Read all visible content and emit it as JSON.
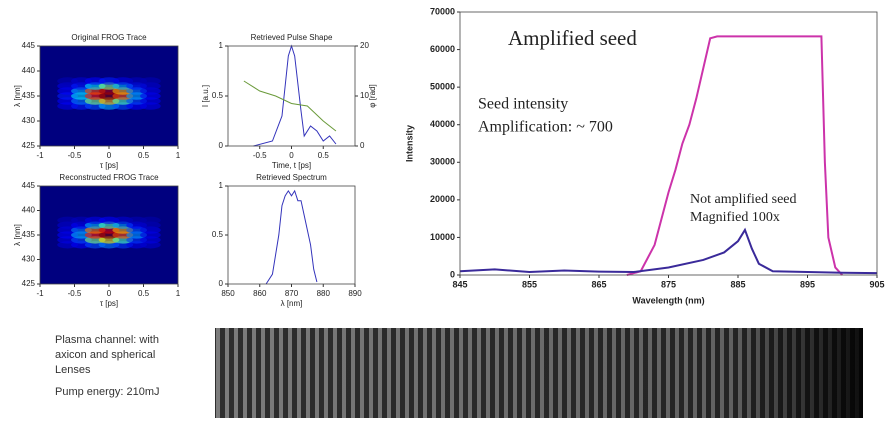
{
  "chart_data": [
    {
      "type": "heatmap",
      "title": "Original FROG Trace",
      "x_label": "τ [ps]",
      "y_label": "λ [nm]",
      "xlim": [
        -1,
        1
      ],
      "xticks": [
        -1,
        -0.5,
        0,
        0.5,
        1
      ],
      "ylim": [
        425,
        445
      ],
      "yticks": [
        425,
        430,
        435,
        440,
        445
      ],
      "background": "#00007f",
      "colormap": "jet",
      "x": [
        -0.6,
        -0.4,
        -0.2,
        0,
        0.2,
        0.4,
        0.6
      ],
      "y": [
        433,
        434,
        435,
        436,
        437,
        438
      ],
      "z": [
        [
          0.1,
          0.15,
          0.2,
          0.3,
          0.2,
          0.12,
          0.1
        ],
        [
          0.12,
          0.25,
          0.5,
          0.7,
          0.45,
          0.2,
          0.1
        ],
        [
          0.15,
          0.35,
          0.85,
          1,
          0.8,
          0.3,
          0.12
        ],
        [
          0.12,
          0.3,
          0.8,
          0.95,
          0.7,
          0.25,
          0.1
        ],
        [
          0.1,
          0.15,
          0.35,
          0.5,
          0.3,
          0.15,
          0.08
        ],
        [
          0.05,
          0.08,
          0.12,
          0.15,
          0.1,
          0.06,
          0.05
        ]
      ]
    },
    {
      "type": "line",
      "title": "Retrieved Pulse Shape",
      "x_label": "Time, t [ps]",
      "y_label": "I [a.u.]",
      "y2_label": "φ [rad]",
      "xlim": [
        -1,
        1
      ],
      "xticks": [
        -0.5,
        0,
        0.5
      ],
      "ylim": [
        0,
        1
      ],
      "yticks": [
        0,
        0.5,
        1
      ],
      "y2lim": [
        0,
        20
      ],
      "y2ticks": [
        0,
        10,
        20
      ],
      "series": [
        {
          "color": "#3333bb",
          "x": [
            -0.6,
            -0.3,
            -0.15,
            -0.05,
            0,
            0.05,
            0.15,
            0.2,
            0.3,
            0.4,
            0.5,
            0.6,
            0.7
          ],
          "values": [
            0,
            0.05,
            0.3,
            0.9,
            1,
            0.9,
            0.35,
            0.1,
            0.2,
            0.15,
            0.05,
            0.1,
            0.02
          ]
        },
        {
          "color": "#6a9a3a",
          "axis": "y2",
          "x": [
            -0.75,
            -0.5,
            -0.25,
            0,
            0.25,
            0.5,
            0.7
          ],
          "values": [
            13,
            11,
            10,
            8.5,
            8,
            5,
            3
          ]
        }
      ]
    },
    {
      "type": "heatmap",
      "title": "Reconstructed FROG Trace",
      "x_label": "τ [ps]",
      "y_label": "λ [nm]",
      "xlim": [
        -1,
        1
      ],
      "xticks": [
        -1,
        -0.5,
        0,
        0.5,
        1
      ],
      "ylim": [
        425,
        445
      ],
      "yticks": [
        425,
        430,
        435,
        440,
        445
      ],
      "background": "#00007f",
      "colormap": "jet",
      "x": [
        -0.6,
        -0.4,
        -0.2,
        0,
        0.2,
        0.4,
        0.6
      ],
      "y": [
        433,
        434,
        435,
        436,
        437,
        438
      ],
      "z": [
        [
          0.08,
          0.12,
          0.2,
          0.25,
          0.18,
          0.1,
          0.08
        ],
        [
          0.1,
          0.2,
          0.5,
          0.65,
          0.45,
          0.18,
          0.1
        ],
        [
          0.12,
          0.3,
          0.85,
          1,
          0.8,
          0.28,
          0.1
        ],
        [
          0.1,
          0.25,
          0.75,
          0.9,
          0.7,
          0.22,
          0.1
        ],
        [
          0.08,
          0.12,
          0.3,
          0.45,
          0.28,
          0.12,
          0.06
        ],
        [
          0.05,
          0.06,
          0.1,
          0.12,
          0.08,
          0.05,
          0.04
        ]
      ]
    },
    {
      "type": "line",
      "title": "Retrieved Spectrum",
      "x_label": "λ [nm]",
      "xlim": [
        850,
        890
      ],
      "xticks": [
        850,
        860,
        870,
        880,
        890
      ],
      "ylim": [
        0,
        1
      ],
      "yticks": [
        0,
        0.5,
        1
      ],
      "series": [
        {
          "color": "#3333bb",
          "x": [
            862,
            864,
            866,
            867,
            868,
            869,
            870,
            871,
            872,
            873,
            874,
            876,
            877,
            878
          ],
          "values": [
            0,
            0.1,
            0.5,
            0.8,
            0.9,
            0.95,
            0.9,
            0.95,
            0.85,
            0.85,
            0.7,
            0.4,
            0.15,
            0.02
          ]
        }
      ]
    },
    {
      "type": "line",
      "x_label": "Wavelength (nm)",
      "y_label": "Intensity",
      "xlim": [
        845,
        905
      ],
      "xticks": [
        845,
        855,
        865,
        875,
        885,
        895,
        905
      ],
      "ylim": [
        0,
        70000
      ],
      "yticks": [
        0,
        10000,
        20000,
        30000,
        40000,
        50000,
        60000,
        70000
      ],
      "series": [
        {
          "name": "Amplified seed",
          "color": "#cc33aa",
          "x": [
            869,
            871,
            873,
            874,
            875,
            876,
            877,
            878,
            879,
            880,
            881,
            882,
            897,
            897.5,
            898,
            899,
            900
          ],
          "values": [
            0,
            1000,
            8000,
            15000,
            22000,
            28000,
            35000,
            40000,
            47000,
            55000,
            63000,
            63500,
            63500,
            30000,
            10000,
            2000,
            0
          ]
        },
        {
          "name": "Not amplified seed",
          "color": "#3a2a9a",
          "x": [
            845,
            850,
            855,
            860,
            865,
            870,
            875,
            880,
            883,
            885,
            886,
            887,
            888,
            890,
            895,
            900,
            905
          ],
          "values": [
            1000,
            1500,
            800,
            1200,
            900,
            800,
            2000,
            4000,
            6000,
            9000,
            12000,
            7000,
            3000,
            1000,
            800,
            600,
            500
          ]
        }
      ],
      "annotations": [
        "Seed intensity",
        "Amplification: ~ 700",
        "Magnified 100x"
      ]
    }
  ],
  "caption": {
    "lines": [
      "Plasma channel: with",
      "axicon and  spherical",
      "Lenses"
    ],
    "pump": "Pump energy: 210mJ"
  }
}
